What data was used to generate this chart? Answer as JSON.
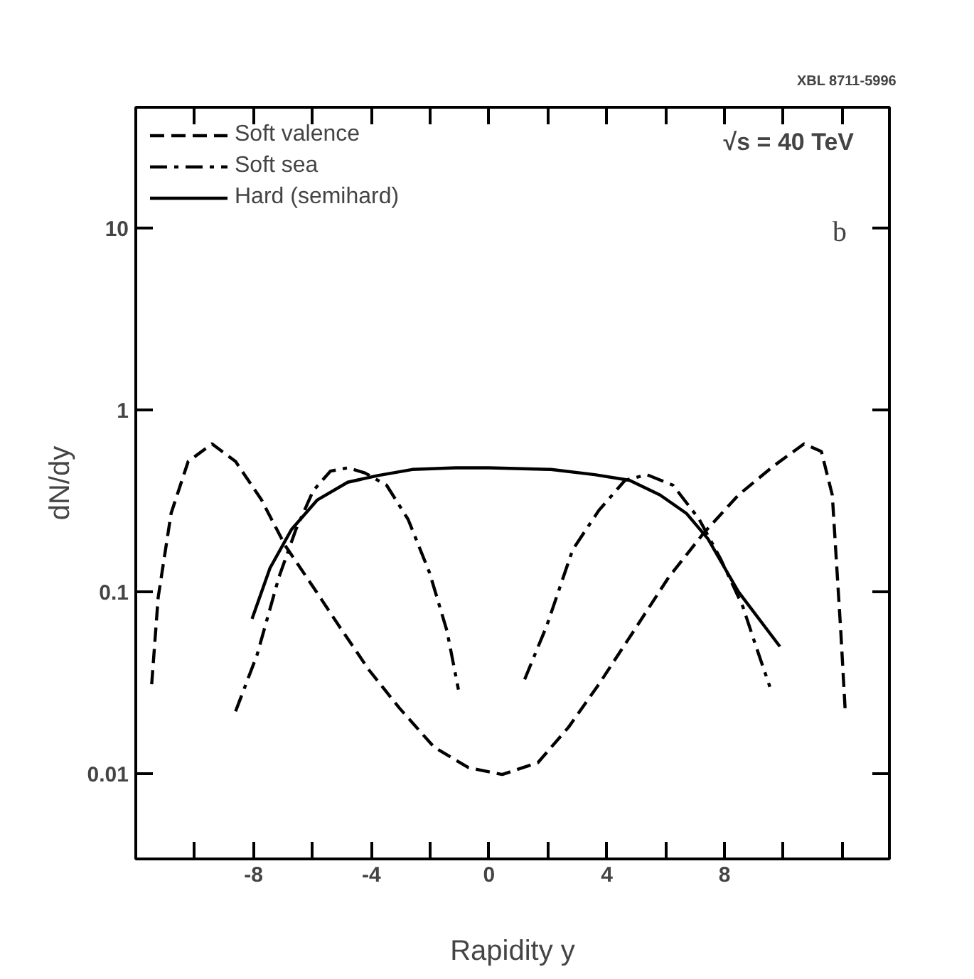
{
  "chart_data": {
    "type": "line",
    "xlabel": "Rapidity y",
    "ylabel": "dN/dy",
    "log": "y",
    "xlim": [
      -12,
      13.6
    ],
    "ylim": [
      0.0034,
      46
    ],
    "xticks": [
      {
        "value": -10,
        "label": null
      },
      -8,
      {
        "value": -6,
        "label": null
      },
      -4,
      {
        "value": -2,
        "label": null
      },
      0,
      {
        "value": 2,
        "label": null
      },
      4,
      {
        "value": 6,
        "label": null
      },
      8,
      {
        "value": 10,
        "label": null
      },
      {
        "value": 12,
        "label": null
      }
    ],
    "yticks": [
      0.01,
      0.1,
      1,
      10
    ],
    "legend": "top left",
    "grid": false,
    "series": [
      {
        "name": "Soft valence",
        "color": "#000000",
        "line_style": "dashed",
        "x": [
          -11.46,
          -11.24,
          -10.8,
          -10.22,
          -9.41,
          -8.61,
          -7.73,
          -6.93,
          -5.97,
          -5.1,
          -4.07,
          -3.05,
          -1.87,
          -0.7,
          0.45,
          1.66,
          2.7,
          3.73,
          4.92,
          6.1,
          7.29,
          8.47,
          9.66,
          10.7,
          11.29,
          11.66,
          11.95,
          12.1
        ],
        "values": [
          0.031,
          0.093,
          0.27,
          0.52,
          0.65,
          0.52,
          0.32,
          0.18,
          0.106,
          0.065,
          0.037,
          0.023,
          0.014,
          0.0108,
          0.0099,
          0.0115,
          0.018,
          0.031,
          0.061,
          0.12,
          0.21,
          0.34,
          0.49,
          0.65,
          0.59,
          0.34,
          0.06,
          0.022
        ]
      },
      {
        "name": "Soft sea",
        "color": "#000000",
        "line_style": "dashdot",
        "x": [
          -8.61,
          -7.88,
          -7.14,
          -6.56,
          -5.97,
          -5.39,
          -4.8,
          -4.22,
          -3.48,
          -2.75,
          -2.02,
          -1.43,
          -1.04,
          null,
          1.21,
          1.96,
          2.84,
          3.73,
          4.62,
          5.36,
          6.25,
          7.14,
          7.88,
          8.62,
          9.07,
          9.54
        ],
        "values": [
          0.022,
          0.045,
          0.12,
          0.22,
          0.36,
          0.46,
          0.48,
          0.45,
          0.385,
          0.25,
          0.127,
          0.061,
          0.029,
          null,
          0.033,
          0.065,
          0.17,
          0.28,
          0.41,
          0.44,
          0.385,
          0.25,
          0.15,
          0.083,
          0.05,
          0.03
        ]
      },
      {
        "name": "Hard (semihard)",
        "color": "#000000",
        "line_style": "solid",
        "x": [
          -8.05,
          -7.44,
          -6.71,
          -5.83,
          -4.8,
          -3.78,
          -2.61,
          -1.14,
          0,
          2.1,
          3.59,
          4.77,
          5.81,
          6.7,
          7.44,
          8.47,
          9.88
        ],
        "values": [
          0.071,
          0.135,
          0.22,
          0.32,
          0.4,
          0.435,
          0.47,
          0.48,
          0.48,
          0.47,
          0.44,
          0.41,
          0.34,
          0.27,
          0.195,
          0.1,
          0.05
        ]
      }
    ],
    "annotations": [
      "√s = 40 TeV",
      "b",
      "XBL 8711-5996"
    ]
  }
}
